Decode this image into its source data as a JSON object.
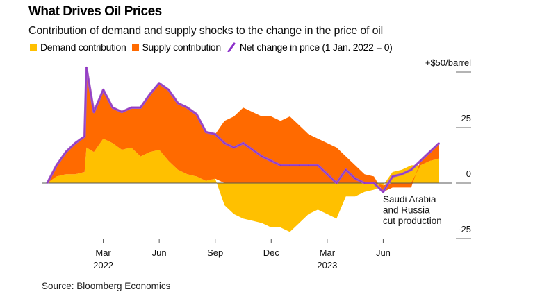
{
  "title": "What Drives Oil Prices",
  "subtitle": "Contribution of demand and supply shocks to the change in the price of oil",
  "legend": [
    {
      "label": "Demand contribution",
      "color": "#FFC000",
      "shape": "square"
    },
    {
      "label": "Supply contribution",
      "color": "#FF6A00",
      "shape": "square"
    },
    {
      "label": "Net change in price (1 Jan. 2022 = 0)",
      "color": "#8B2FC9",
      "shape": "line"
    }
  ],
  "source": "Source: Bloomberg Economics",
  "chart_data": {
    "type": "area",
    "title": "What Drives Oil Prices",
    "subtitle": "Contribution of demand and supply shocks to the change in the price of oil",
    "xlabel": "",
    "ylabel": "$/barrel",
    "x_unit": "months since 1 Jan. 2022",
    "xlim": [
      -1,
      20
    ],
    "ylim": [
      -25,
      50
    ],
    "y_ticks": [
      {
        "value": 50,
        "label": "+$50/barrel"
      },
      {
        "value": 25,
        "label": "25"
      },
      {
        "value": 0,
        "label": "0"
      },
      {
        "value": -25,
        "label": "-25"
      }
    ],
    "x_ticks": [
      {
        "value": 2,
        "label": "Mar",
        "sublabel": "2022"
      },
      {
        "value": 5,
        "label": "Jun",
        "sublabel": ""
      },
      {
        "value": 8,
        "label": "Sep",
        "sublabel": ""
      },
      {
        "value": 11,
        "label": "Dec",
        "sublabel": ""
      },
      {
        "value": 14,
        "label": "Mar",
        "sublabel": "2023"
      },
      {
        "value": 17,
        "label": "Jun",
        "sublabel": ""
      }
    ],
    "x": [
      -1.0,
      -0.5,
      0.0,
      0.5,
      1.0,
      1.1,
      1.5,
      2.0,
      2.5,
      3.0,
      3.5,
      4.0,
      4.5,
      5.0,
      5.5,
      6.0,
      6.5,
      7.0,
      7.5,
      8.0,
      8.5,
      9.0,
      9.5,
      10.0,
      10.5,
      11.0,
      11.5,
      12.0,
      12.5,
      13.0,
      13.5,
      14.0,
      14.5,
      15.0,
      15.5,
      16.0,
      16.5,
      17.0,
      17.5,
      18.0,
      18.5,
      19.0,
      19.5,
      20.0
    ],
    "series": [
      {
        "name": "Demand contribution",
        "color": "#FFC000",
        "values": [
          0,
          3,
          4,
          4,
          5,
          16,
          14,
          20,
          18,
          15,
          16,
          12,
          14,
          15,
          10,
          6,
          4,
          3,
          1,
          2,
          -10,
          -14,
          -16,
          -17,
          -18,
          -20,
          -20,
          -22,
          -18,
          -14,
          -12,
          -14,
          -16,
          -6,
          -6,
          -4,
          -3,
          -1,
          5,
          6,
          8,
          8,
          10,
          11
        ]
      },
      {
        "name": "Supply contribution",
        "color": "#FF6A00",
        "values": [
          0,
          5,
          10,
          14,
          16,
          36,
          18,
          22,
          16,
          17,
          18,
          22,
          26,
          30,
          32,
          30,
          30,
          28,
          22,
          20,
          28,
          30,
          34,
          32,
          30,
          30,
          28,
          30,
          26,
          22,
          20,
          18,
          16,
          12,
          8,
          4,
          3,
          -3,
          -2,
          -2,
          -2,
          2,
          4,
          7
        ]
      },
      {
        "name": "Net change in price (1 Jan. 2022 = 0)",
        "color": "#8B2FC9",
        "values": [
          0,
          8,
          14,
          18,
          21,
          52,
          32,
          42,
          34,
          32,
          34,
          34,
          40,
          45,
          42,
          36,
          34,
          31,
          23,
          22,
          18,
          16,
          18,
          15,
          12,
          10,
          8,
          8,
          8,
          8,
          8,
          4,
          0,
          6,
          2,
          0,
          0,
          -4,
          3,
          4,
          6,
          10,
          14,
          18
        ]
      }
    ],
    "annotations": [
      {
        "text_lines": [
          "Saudi Arabia",
          "and Russia",
          "cut production"
        ],
        "x": 17.0,
        "y": -4
      }
    ],
    "grid": false,
    "legend_position": "top-left"
  }
}
